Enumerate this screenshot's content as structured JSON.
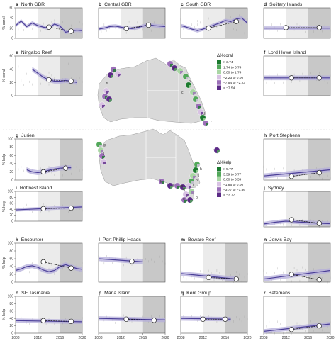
{
  "figure": {
    "legend_coral": {
      "title": "Δ%coral",
      "items": [
        {
          "label": "> 3.74",
          "color": "#1b7a2e"
        },
        {
          "label": "1.74 to 3.74",
          "color": "#52a85a"
        },
        {
          "label": "0.00 to 1.74",
          "color": "#a9d6a4"
        },
        {
          "label": "−2.23 to 0.00",
          "color": "#d8c2e3"
        },
        {
          "label": "−7.54 to −2.23",
          "color": "#9b6fb8"
        },
        {
          "label": "< −7.54",
          "color": "#5b2a86"
        }
      ]
    },
    "legend_kelp": {
      "title": "Δ%kelp",
      "items": [
        {
          "label": "> 5.77",
          "color": "#1b7a2e"
        },
        {
          "label": "3.59 to 5.77",
          "color": "#52a85a"
        },
        {
          "label": "0.00 to 3.59",
          "color": "#a9d6a4"
        },
        {
          "label": "−1.86 to 0.00",
          "color": "#d8c2e3"
        },
        {
          "label": "−3.77 to −1.86",
          "color": "#9b6fb8"
        },
        {
          "label": "< −3.77",
          "color": "#5b2a86"
        }
      ]
    },
    "map_labels": [
      "a",
      "b",
      "c",
      "d",
      "e",
      "f",
      "g",
      "h",
      "i",
      "j",
      "k",
      "l",
      "m",
      "n",
      "o",
      "p",
      "q",
      "r"
    ],
    "colors": {
      "line": "#4b3f98",
      "band": "#b4aedb",
      "shade_light": "#ebebeb",
      "shade_dark": "#c8c8c8",
      "land": "#d9d9d9"
    }
  },
  "chart_data": [
    {
      "id": "a",
      "title": "North GBR",
      "type": "line",
      "ylabel": "% coral",
      "xlim": [
        2008,
        2020
      ],
      "ylim": [
        0,
        60
      ],
      "yticks": [
        0,
        20,
        40,
        60
      ],
      "xticks": [],
      "shade": [
        [
          2012,
          2016
        ],
        [
          2016,
          2020
        ]
      ],
      "x": [
        2008,
        2009,
        2010,
        2011,
        2012,
        2013,
        2014,
        2015,
        2016,
        2017,
        2018,
        2019,
        2020
      ],
      "values": [
        25,
        34,
        23,
        30,
        25,
        22,
        20,
        28,
        24,
        12,
        14,
        16,
        15
      ],
      "points": [
        {
          "x": 2014,
          "y": 22
        },
        {
          "x": 2018,
          "y": 14
        }
      ]
    },
    {
      "id": "b",
      "title": "Central GBR",
      "type": "line",
      "ylabel": "",
      "xlim": [
        2008,
        2020
      ],
      "ylim": [
        0,
        60
      ],
      "yticks": [],
      "xticks": [],
      "shade": [
        [
          2012,
          2016
        ],
        [
          2016,
          2020
        ]
      ],
      "x": [
        2008,
        2009,
        2010,
        2011,
        2012,
        2013,
        2014,
        2015,
        2016,
        2017,
        2018,
        2019,
        2020
      ],
      "values": [
        18,
        20,
        23,
        24,
        22,
        20,
        19,
        21,
        24,
        27,
        25,
        24,
        23
      ],
      "points": [
        {
          "x": 2013,
          "y": 19
        },
        {
          "x": 2017,
          "y": 26
        }
      ]
    },
    {
      "id": "c",
      "title": "South GBR",
      "type": "line",
      "ylabel": "",
      "xlim": [
        2008,
        2020
      ],
      "ylim": [
        0,
        60
      ],
      "yticks": [],
      "xticks": [],
      "shade": [
        [
          2012,
          2016
        ],
        [
          2016,
          2020
        ]
      ],
      "x": [
        2008,
        2009,
        2010,
        2011,
        2012,
        2013,
        2014,
        2015,
        2016,
        2017,
        2018,
        2019,
        2020
      ],
      "values": [
        25,
        22,
        18,
        15,
        18,
        22,
        26,
        30,
        35,
        33,
        38,
        40,
        30
      ],
      "points": [
        {
          "x": 2013,
          "y": 20
        },
        {
          "x": 2018,
          "y": 33
        }
      ]
    },
    {
      "id": "d",
      "title": "Solitary Islands",
      "type": "line",
      "ylabel": "",
      "xlim": [
        2008,
        2020
      ],
      "ylim": [
        0,
        60
      ],
      "yticks": [],
      "xticks": [],
      "shade": [
        [
          2012,
          2016
        ],
        [
          2016,
          2020
        ]
      ],
      "x": [
        2008,
        2020
      ],
      "values": [
        20,
        20
      ],
      "points": [
        {
          "x": 2012,
          "y": 21
        },
        {
          "x": 2018,
          "y": 21
        }
      ]
    },
    {
      "id": "e",
      "title": "Ningaloo Reef",
      "type": "line",
      "ylabel": "% coral",
      "xlim": [
        2008,
        2020
      ],
      "ylim": [
        0,
        60
      ],
      "yticks": [
        0,
        20,
        40,
        60
      ],
      "xticks": [],
      "shade": [
        [
          2012,
          2016
        ],
        [
          2016,
          2020
        ]
      ],
      "x": [
        2011,
        2012,
        2013,
        2014,
        2015,
        2016,
        2017,
        2018,
        2019
      ],
      "values": [
        40,
        34,
        28,
        24,
        22,
        22,
        23,
        22,
        20
      ],
      "points": [
        {
          "x": 2014,
          "y": 24
        },
        {
          "x": 2018,
          "y": 22
        }
      ]
    },
    {
      "id": "f",
      "title": "Lord Howe Island",
      "type": "line",
      "ylabel": "",
      "xlim": [
        2008,
        2020
      ],
      "ylim": [
        0,
        60
      ],
      "yticks": [],
      "xticks": [],
      "shade": [
        [
          2012,
          2016
        ],
        [
          2016,
          2020
        ]
      ],
      "x": [
        2008,
        2020
      ],
      "values": [
        27,
        27
      ],
      "points": [
        {
          "x": 2013,
          "y": 27
        },
        {
          "x": 2018,
          "y": 27
        }
      ]
    },
    {
      "id": "g",
      "title": "Jurien",
      "type": "line",
      "ylabel": "% kelp",
      "xlim": [
        2008,
        2020
      ],
      "ylim": [
        0,
        100
      ],
      "yticks": [
        0,
        20,
        40,
        60,
        80,
        100
      ],
      "xticks": [],
      "shade": [
        [
          2012,
          2016
        ],
        [
          2016,
          2020
        ]
      ],
      "x": [
        2010,
        2011,
        2012,
        2013,
        2014,
        2015,
        2016,
        2017,
        2018
      ],
      "values": [
        25,
        20,
        18,
        20,
        24,
        27,
        29,
        30,
        30
      ],
      "points": [
        {
          "x": 2013,
          "y": 20
        },
        {
          "x": 2017,
          "y": 29
        }
      ]
    },
    {
      "id": "h",
      "title": "Port Stephens",
      "type": "line",
      "ylabel": "",
      "xlim": [
        2008,
        2020
      ],
      "ylim": [
        0,
        100
      ],
      "yticks": [],
      "xticks": [],
      "shade": [
        [
          2012,
          2016
        ],
        [
          2016,
          2020
        ]
      ],
      "x": [
        2008,
        2020
      ],
      "values": [
        10,
        25
      ],
      "points": [
        {
          "x": 2013,
          "y": 9
        },
        {
          "x": 2018,
          "y": 18
        }
      ]
    },
    {
      "id": "i",
      "title": "Rottnest Island",
      "type": "line",
      "ylabel": "% kelp",
      "xlim": [
        2008,
        2020
      ],
      "ylim": [
        0,
        100
      ],
      "yticks": [
        0,
        20,
        40,
        60,
        80,
        100
      ],
      "xticks": [],
      "shade": [
        [
          2012,
          2016
        ],
        [
          2016,
          2020
        ]
      ],
      "x": [
        2008,
        2020
      ],
      "values": [
        38,
        48
      ],
      "points": [
        {
          "x": 2013,
          "y": 42
        },
        {
          "x": 2018,
          "y": 44
        }
      ]
    },
    {
      "id": "j",
      "title": "Sydney",
      "type": "line",
      "ylabel": "",
      "xlim": [
        2008,
        2020
      ],
      "ylim": [
        0,
        100
      ],
      "yticks": [],
      "xticks": [],
      "shade": [
        [
          2012,
          2016
        ],
        [
          2016,
          2020
        ]
      ],
      "x": [
        2008,
        2010,
        2012,
        2014,
        2016,
        2018,
        2020
      ],
      "values": [
        8,
        13,
        16,
        14,
        12,
        10,
        9
      ],
      "points": [
        {
          "x": 2013,
          "y": 20
        },
        {
          "x": 2018,
          "y": 10
        }
      ]
    },
    {
      "id": "k",
      "title": "Encounter",
      "type": "line",
      "ylabel": "% kelp",
      "xlim": [
        2008,
        2020
      ],
      "ylim": [
        0,
        100
      ],
      "yticks": [
        0,
        20,
        40,
        60,
        80,
        100
      ],
      "xticks": [],
      "shade": [
        [
          2012,
          2016
        ],
        [
          2016,
          2020
        ]
      ],
      "x": [
        2008,
        2009,
        2010,
        2011,
        2012,
        2013,
        2014,
        2015,
        2016,
        2017,
        2018,
        2019,
        2020
      ],
      "values": [
        30,
        34,
        40,
        42,
        38,
        31,
        27,
        30,
        40,
        45,
        40,
        35,
        33
      ],
      "points": [
        {
          "x": 2013,
          "y": 52
        },
        {
          "x": 2018,
          "y": 36
        }
      ]
    },
    {
      "id": "l",
      "title": "Port Phillip Heads",
      "type": "line",
      "ylabel": "",
      "xlim": [
        2008,
        2020
      ],
      "ylim": [
        0,
        100
      ],
      "yticks": [],
      "xticks": [],
      "shade": [
        [
          2012,
          2016
        ],
        [
          2016,
          2020
        ]
      ],
      "x": [
        2008,
        2016
      ],
      "values": [
        60,
        52
      ],
      "points": [
        {
          "x": 2014,
          "y": 53
        }
      ]
    },
    {
      "id": "m",
      "title": "Beware Reef",
      "type": "line",
      "ylabel": "",
      "xlim": [
        2008,
        2020
      ],
      "ylim": [
        0,
        100
      ],
      "yticks": [],
      "xticks": [],
      "shade": [
        [
          2012,
          2016
        ],
        [
          2016,
          2020
        ]
      ],
      "x": [
        2008,
        2018
      ],
      "values": [
        22,
        8
      ],
      "points": [
        {
          "x": 2013,
          "y": 12
        },
        {
          "x": 2018,
          "y": 8
        }
      ]
    },
    {
      "id": "n",
      "title": "Jervis Bay",
      "type": "line",
      "ylabel": "",
      "xlim": [
        2008,
        2020
      ],
      "ylim": [
        0,
        100
      ],
      "yticks": [],
      "xticks": [],
      "shade": [
        [
          2012,
          2016
        ],
        [
          2016,
          2020
        ]
      ],
      "x": [
        2008,
        2020
      ],
      "values": [
        8,
        30
      ],
      "points": [
        {
          "x": 2013,
          "y": 20
        },
        {
          "x": 2018,
          "y": 6
        }
      ]
    },
    {
      "id": "o",
      "title": "SE Tasmania",
      "type": "line",
      "ylabel": "% kelp",
      "xlim": [
        2008,
        2020
      ],
      "ylim": [
        0,
        100
      ],
      "yticks": [
        0,
        20,
        40,
        60,
        80,
        100
      ],
      "xticks": [
        2008,
        2012,
        2016,
        2020
      ],
      "shade": [
        [
          2012,
          2016
        ],
        [
          2016,
          2020
        ]
      ],
      "x": [
        2008,
        2020
      ],
      "values": [
        34,
        31
      ],
      "points": [
        {
          "x": 2013,
          "y": 34
        },
        {
          "x": 2018,
          "y": 32
        }
      ]
    },
    {
      "id": "p",
      "title": "Maria Island",
      "type": "line",
      "ylabel": "",
      "xlim": [
        2008,
        2020
      ],
      "ylim": [
        0,
        100
      ],
      "yticks": [],
      "xticks": [
        2008,
        2012,
        2016,
        2020
      ],
      "shade": [
        [
          2012,
          2016
        ],
        [
          2016,
          2020
        ]
      ],
      "x": [
        2008,
        2020
      ],
      "values": [
        40,
        36
      ],
      "points": [
        {
          "x": 2013,
          "y": 38
        },
        {
          "x": 2018,
          "y": 35
        }
      ]
    },
    {
      "id": "q",
      "title": "Kent Group",
      "type": "line",
      "ylabel": "",
      "xlim": [
        2008,
        2020
      ],
      "ylim": [
        0,
        100
      ],
      "yticks": [],
      "xticks": [
        2008,
        2012,
        2016,
        2020
      ],
      "shade": [
        [
          2012,
          2016
        ],
        [
          2016,
          2020
        ]
      ],
      "x": [
        2008,
        2017
      ],
      "values": [
        40,
        38
      ],
      "points": [
        {
          "x": 2012,
          "y": 38
        },
        {
          "x": 2016,
          "y": 38
        }
      ]
    },
    {
      "id": "r",
      "title": "Batemans",
      "type": "line",
      "ylabel": "",
      "xlim": [
        2008,
        2020
      ],
      "ylim": [
        0,
        100
      ],
      "yticks": [],
      "xticks": [
        2008,
        2012,
        2016,
        2020
      ],
      "shade": [
        [
          2012,
          2016
        ],
        [
          2016,
          2020
        ]
      ],
      "x": [
        2008,
        2020
      ],
      "values": [
        5,
        25
      ],
      "points": [
        {
          "x": 2013,
          "y": 10
        },
        {
          "x": 2018,
          "y": 20
        }
      ]
    }
  ]
}
